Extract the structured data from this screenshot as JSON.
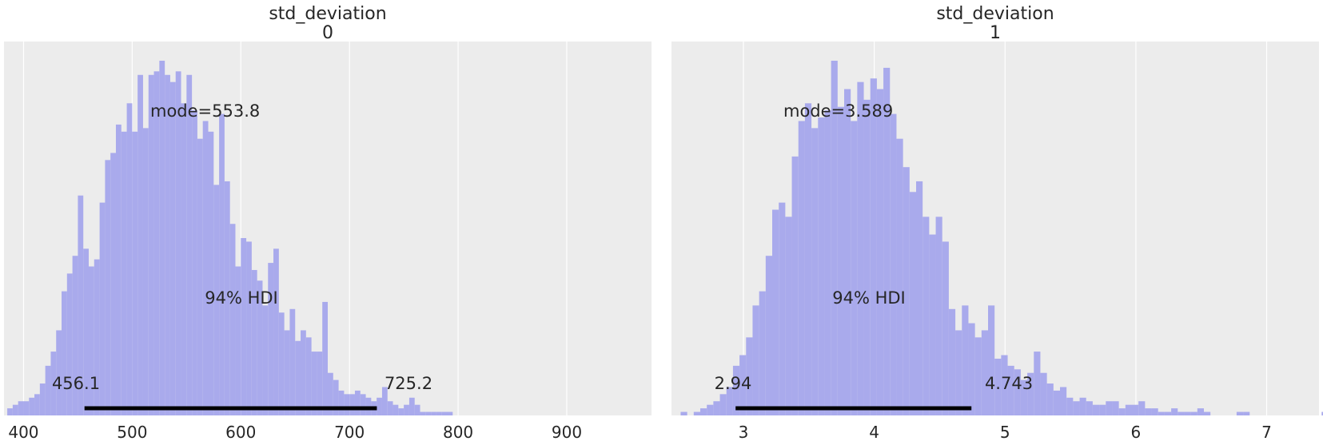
{
  "chart_data": [
    {
      "type": "histogram",
      "title": "std_deviation",
      "subtitle": "0",
      "xlim": [
        382,
        978
      ],
      "xticks": [
        400,
        500,
        600,
        700,
        800,
        900
      ],
      "grid": true,
      "bar_color": "#a9aaec",
      "background": "#ececec",
      "point_estimate_label": "mode=553.8",
      "hdi_label": "94% HDI",
      "hdi": [
        456.1,
        725.2
      ],
      "hdi_low_label": "456.1",
      "hdi_high_label": "725.2",
      "bins": {
        "start": 385,
        "width": 5,
        "heights": [
          2,
          3,
          4,
          4,
          5,
          6,
          9,
          14,
          18,
          24,
          35,
          40,
          45,
          62,
          47,
          42,
          44,
          60,
          72,
          74,
          82,
          80,
          88,
          80,
          96,
          81,
          96,
          97,
          100,
          96,
          94,
          97,
          88,
          96,
          86,
          78,
          83,
          80,
          65,
          85,
          66,
          54,
          42,
          50,
          49,
          41,
          38,
          31,
          43,
          47,
          29,
          24,
          30,
          21,
          24,
          22,
          18,
          18,
          32,
          12,
          10,
          7,
          6,
          6,
          7,
          6,
          5,
          4,
          5,
          8,
          4,
          3,
          2,
          3,
          5,
          3,
          1,
          1,
          1,
          1,
          1,
          1,
          0,
          0,
          0,
          0,
          0,
          0,
          0,
          0,
          0,
          0,
          0,
          0,
          0,
          0,
          0,
          0,
          0,
          0,
          0,
          0,
          0,
          0,
          0,
          0,
          0,
          0,
          0,
          0,
          0,
          0,
          0,
          0,
          0,
          0
        ]
      }
    },
    {
      "type": "histogram",
      "title": "std_deviation",
      "subtitle": "1",
      "xlim": [
        2.45,
        7.4
      ],
      "xticks": [
        3,
        4,
        5,
        6,
        7
      ],
      "grid": true,
      "bar_color": "#a9aaec",
      "background": "#ececec",
      "point_estimate_label": "mode=3.589",
      "hdi_label": "94% HDI",
      "hdi": [
        2.94,
        4.743
      ],
      "hdi_low_label": "2.94",
      "hdi_high_label": "4.743",
      "bins": {
        "start": 2.52,
        "width": 0.05,
        "heights": [
          1,
          0,
          1,
          2,
          3,
          4,
          6,
          8,
          14,
          17,
          22,
          31,
          35,
          45,
          58,
          60,
          56,
          73,
          83,
          88,
          81,
          84,
          86,
          100,
          87,
          92,
          83,
          94,
          89,
          95,
          92,
          98,
          85,
          78,
          70,
          63,
          66,
          56,
          51,
          56,
          49,
          30,
          24,
          31,
          26,
          22,
          24,
          31,
          16,
          17,
          14,
          13,
          10,
          12,
          18,
          12,
          9,
          7,
          8,
          5,
          4,
          5,
          4,
          3,
          3,
          4,
          4,
          2,
          3,
          3,
          4,
          2,
          2,
          1,
          1,
          2,
          1,
          1,
          1,
          2,
          1,
          0,
          0,
          0,
          0,
          1,
          1,
          0,
          0,
          0,
          0,
          0,
          0,
          0,
          0,
          0,
          0,
          0,
          1,
          0
        ]
      }
    }
  ]
}
